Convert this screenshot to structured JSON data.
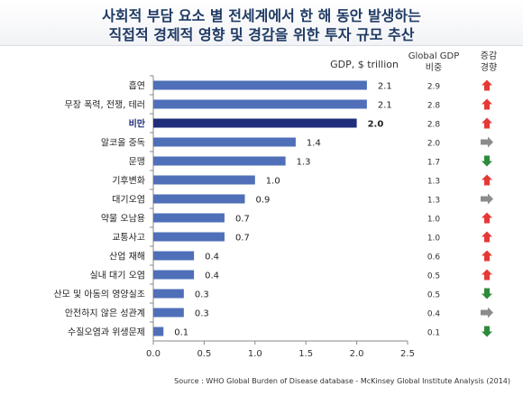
{
  "title": {
    "line1": "사회적 부담 요소 별 전세계에서 한 해 동안 발생하는",
    "line2": "직접적 경제적 영향 및 경감을 위한 투자 규모 추산"
  },
  "headers": {
    "gdp": "GDP, $ trillion",
    "global_gdp_1": "Global GDP",
    "global_gdp_2": "비중",
    "trend_1": "증감",
    "trend_2": "경향"
  },
  "source": "Source : WHO Global Burden of Disease database - McKinsey Global Institute Analysis (2014)",
  "colors": {
    "bar": "#4f6fb8",
    "bar_highlight": "#1f2d7a",
    "up": "#e53935",
    "right": "#8c8c8c",
    "down": "#2e8b3a",
    "title": "#1f3a64"
  },
  "chart_data": {
    "type": "bar",
    "orientation": "horizontal",
    "title": "사회적 부담 요소 별 전세계에서 한 해 동안 발생하는 직접적 경제적 영향 및 경감을 위한 투자 규모 추산",
    "xlabel": "GDP, $ trillion",
    "xlim": [
      0,
      2.5
    ],
    "xticks": [
      "0.0",
      "0.5",
      "1.0",
      "1.5",
      "2.0",
      "2.5"
    ],
    "highlight_category": "비만",
    "categories": [
      "흡연",
      "무장 폭력, 전쟁, 테러",
      "비만",
      "알코올 중독",
      "문맹",
      "기후변화",
      "대기오염",
      "약물 오남용",
      "교통사고",
      "산업 재해",
      "실내 대기 오염",
      "산모 및 아동의 영양실조",
      "안전하지 않은 성관계",
      "수질오염과 위생문제"
    ],
    "values": [
      2.1,
      2.1,
      2.0,
      1.4,
      1.3,
      1.0,
      0.9,
      0.7,
      0.7,
      0.4,
      0.4,
      0.3,
      0.3,
      0.1
    ],
    "value_labels": [
      "2.1",
      "2.1",
      "2.0",
      "1.4",
      "1.3",
      "1.0",
      "0.9",
      "0.7",
      "0.7",
      "0.4",
      "0.4",
      "0.3",
      "0.3",
      "0.1"
    ],
    "global_gdp_share": [
      "2.9",
      "2.8",
      "2.8",
      "2.0",
      "1.7",
      "1.3",
      "1.3",
      "1.0",
      "1.0",
      "0.6",
      "0.5",
      "0.5",
      "0.4",
      "0.1"
    ],
    "trend": [
      "up",
      "up",
      "up",
      "right",
      "down",
      "up",
      "right",
      "up",
      "up",
      "up",
      "up",
      "down",
      "right",
      "down"
    ]
  }
}
